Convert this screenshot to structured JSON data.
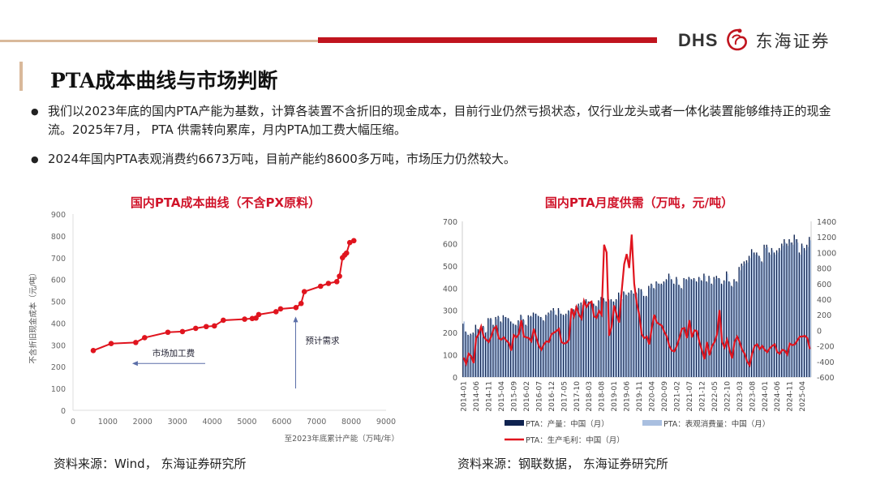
{
  "header": {
    "logo_latin": "DHS",
    "logo_cn": "东海证券",
    "title": "PTA成本曲线与市场判断"
  },
  "bullets": [
    "我们以2023年底的国内PTA产能为基数，计算各装置不含折旧的现金成本，目前行业仍然亏损状态，仅行业龙头或者一体化装置能够维持正的现金流。2025年7月， PTA 供需转向累库，月内PTA加工费大幅压缩。",
    "2024年国内PTA表观消费约6673万吨，目前产能约8600多万吨，市场压力仍然较大。"
  ],
  "sources": {
    "left": "资料来源：Wind， 东海证券研究所",
    "right": "资料来源：钢联数据， 东海证券研究所"
  },
  "chart_data": [
    {
      "type": "line",
      "title": "国内PTA成本曲线（不含PX原料）",
      "xlabel": "至2023年底累计产能（万吨/年）",
      "ylabel": "不含折旧现金成本（元/吨）",
      "xlim": [
        0,
        9000
      ],
      "ylim": [
        0,
        900
      ],
      "xticks": [
        0,
        1000,
        2000,
        3000,
        4000,
        5000,
        6000,
        7000,
        8000,
        9000
      ],
      "yticks": [
        0,
        100,
        200,
        300,
        400,
        500,
        600,
        700,
        800,
        900
      ],
      "color": "#e0141e",
      "points": [
        [
          583,
          274
        ],
        [
          1096,
          306
        ],
        [
          1803,
          311
        ],
        [
          2059,
          333
        ],
        [
          2727,
          358
        ],
        [
          3147,
          361
        ],
        [
          3527,
          376
        ],
        [
          3830,
          384
        ],
        [
          4064,
          387
        ],
        [
          4320,
          413
        ],
        [
          4934,
          418
        ],
        [
          5152,
          421
        ],
        [
          5260,
          423
        ],
        [
          5338,
          439
        ],
        [
          5835,
          452
        ],
        [
          5967,
          465
        ],
        [
          6410,
          471
        ],
        [
          6557,
          490
        ],
        [
          6650,
          544
        ],
        [
          7117,
          569
        ],
        [
          7342,
          582
        ],
        [
          7583,
          590
        ],
        [
          7661,
          615
        ],
        [
          7747,
          700
        ],
        [
          7809,
          712
        ],
        [
          7863,
          721
        ],
        [
          7956,
          769
        ],
        [
          8073,
          778
        ]
      ],
      "annotations": [
        {
          "text": "市场加工费",
          "arrow": "left",
          "x_from": 3800,
          "x_to": 1700,
          "y": 215
        },
        {
          "text": "预计需求",
          "arrow": "up",
          "x": 6400,
          "y_from": 100,
          "y_to": 430
        }
      ]
    },
    {
      "type": "bar+line",
      "title": "国内PTA月度供需（万吨，元/吨）",
      "ylim": [
        0,
        700
      ],
      "y2lim": [
        -600,
        1400
      ],
      "yticks": [
        0,
        100,
        200,
        300,
        400,
        500,
        600,
        700
      ],
      "y2ticks": [
        -600,
        -400,
        -200,
        0,
        200,
        400,
        600,
        800,
        1000,
        1200,
        1400
      ],
      "start": "2014-01",
      "xtick_labels": [
        "2014-01",
        "2014-06",
        "2014-11",
        "2015-04",
        "2015-09",
        "2016-02",
        "2016-07",
        "2016-12",
        "2017-05",
        "2017-10",
        "2018-03",
        "2018-08",
        "2019-01",
        "2019-06",
        "2019-11",
        "2020-04",
        "2020-09",
        "2021-02",
        "2021-07",
        "2021-12",
        "2022-05",
        "2022-10",
        "2023-03",
        "2023-08",
        "2024-01",
        "2024-06",
        "2024-11",
        "2025-04"
      ],
      "series": [
        {
          "name": "PTA：产量：中国（月）",
          "kind": "bar",
          "axis": "left",
          "color": "#0f2350",
          "values": [
            240,
            205,
            190,
            195,
            200,
            235,
            215,
            225,
            230,
            200,
            265,
            265,
            235,
            270,
            275,
            250,
            278,
            270,
            265,
            250,
            240,
            235,
            255,
            280,
            260,
            235,
            278,
            275,
            290,
            285,
            275,
            270,
            255,
            280,
            290,
            300,
            310,
            280,
            310,
            285,
            280,
            285,
            300,
            290,
            305,
            320,
            330,
            335,
            340,
            350,
            340,
            335,
            330,
            320,
            345,
            360,
            355,
            340,
            350,
            350,
            340,
            350,
            380,
            355,
            385,
            370,
            380,
            390,
            375,
            380,
            400,
            395,
            365,
            365,
            410,
            420,
            400,
            430,
            420,
            420,
            430,
            440,
            465,
            440,
            420,
            450,
            415,
            400,
            445,
            440,
            450,
            440,
            445,
            430,
            450,
            435,
            465,
            430,
            455,
            420,
            450,
            455,
            445,
            420,
            435,
            475,
            430,
            410,
            440,
            430,
            495,
            510,
            520,
            525,
            545,
            575,
            560,
            560,
            545,
            520,
            595,
            595,
            560,
            580,
            560,
            570,
            580,
            600,
            620,
            600,
            620,
            605,
            640,
            620,
            560,
            600,
            580,
            595,
            630
          ]
        },
        {
          "name": "PTA：表观消费量：中国（月）",
          "kind": "bar",
          "axis": "left",
          "color": "#a9bfe0",
          "values": [
            250,
            200,
            185,
            190,
            195,
            220,
            210,
            220,
            225,
            205,
            260,
            260,
            230,
            260,
            270,
            245,
            270,
            265,
            260,
            245,
            235,
            230,
            250,
            275,
            255,
            230,
            270,
            270,
            285,
            280,
            270,
            265,
            250,
            275,
            285,
            295,
            300,
            275,
            300,
            280,
            275,
            280,
            295,
            285,
            300,
            310,
            320,
            325,
            330,
            340,
            335,
            330,
            325,
            315,
            340,
            355,
            345,
            335,
            345,
            340,
            335,
            345,
            370,
            350,
            380,
            365,
            375,
            385,
            370,
            375,
            395,
            385,
            360,
            360,
            400,
            415,
            395,
            425,
            415,
            415,
            425,
            435,
            455,
            435,
            415,
            440,
            410,
            395,
            440,
            435,
            445,
            435,
            440,
            425,
            445,
            430,
            455,
            425,
            445,
            415,
            440,
            445,
            440,
            415,
            430,
            465,
            425,
            405,
            430,
            425,
            480,
            500,
            510,
            515,
            535,
            560,
            550,
            550,
            535,
            515,
            580,
            585,
            550,
            570,
            550,
            560,
            570,
            590,
            605,
            590,
            605,
            595,
            620,
            605,
            550,
            590,
            570,
            585,
            615
          ]
        },
        {
          "name": "PTA：生产毛利：中国（月）",
          "kind": "line",
          "axis": "right",
          "color": "#e0141e",
          "values": [
            -350,
            -430,
            -300,
            -330,
            -420,
            -100,
            -50,
            50,
            -80,
            -120,
            -150,
            -80,
            20,
            50,
            -100,
            -120,
            -90,
            -130,
            -160,
            -260,
            -60,
            -90,
            -50,
            130,
            -80,
            -90,
            -100,
            -140,
            20,
            -100,
            -200,
            -250,
            -180,
            -140,
            -150,
            -50,
            -30,
            -10,
            20,
            -150,
            -170,
            -160,
            -120,
            280,
            180,
            300,
            200,
            150,
            380,
            300,
            350,
            370,
            180,
            160,
            250,
            200,
            1100,
            1000,
            -70,
            50,
            320,
            200,
            100,
            500,
            850,
            980,
            800,
            1230,
            600,
            350,
            200,
            -50,
            -100,
            -80,
            -180,
            30,
            200,
            100,
            80,
            60,
            -20,
            -80,
            -200,
            -260,
            -270,
            -200,
            -100,
            20,
            30,
            -100,
            130,
            -90,
            0,
            -10,
            -150,
            -260,
            -370,
            -150,
            -320,
            -200,
            -150,
            -50,
            260,
            -150,
            -220,
            -120,
            -250,
            -360,
            -150,
            -80,
            -150,
            -250,
            -300,
            -400,
            -450,
            -300,
            -200,
            -180,
            -240,
            -200,
            -250,
            -280,
            -230,
            -200,
            -180,
            -280,
            -300,
            -250,
            -260,
            -310,
            -170,
            -190,
            -180,
            -130,
            -80,
            -80,
            -70,
            -100,
            -240
          ]
        }
      ]
    }
  ]
}
